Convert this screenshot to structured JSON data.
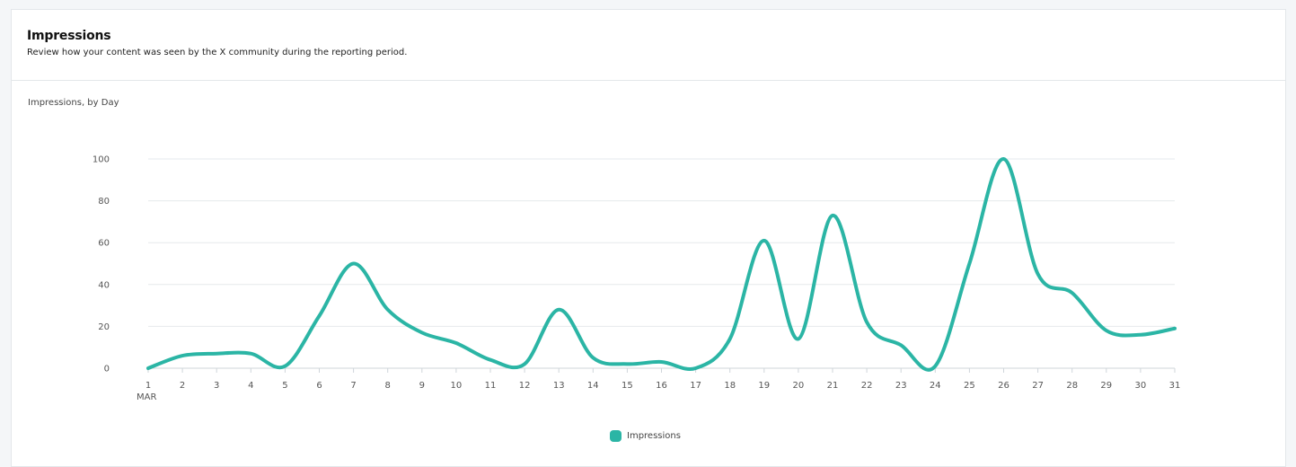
{
  "header": {
    "title": "Impressions",
    "subtitle": "Review how your content was seen by the X community during the reporting period."
  },
  "colors": {
    "series": "#2bb5a5",
    "grid": "#e6e9ec",
    "axis": "#cfd5da"
  },
  "chart_data": {
    "type": "line",
    "title": "Impressions, by Day",
    "xlabel": "",
    "ylabel": "",
    "x": [
      "1",
      "2",
      "3",
      "4",
      "5",
      "6",
      "7",
      "8",
      "9",
      "10",
      "11",
      "12",
      "13",
      "14",
      "15",
      "16",
      "17",
      "18",
      "19",
      "20",
      "21",
      "22",
      "23",
      "24",
      "25",
      "26",
      "27",
      "28",
      "29",
      "30",
      "31"
    ],
    "x_sublabel": "MAR",
    "yticks": [
      0,
      20,
      40,
      60,
      80,
      100
    ],
    "ylim": [
      0,
      100
    ],
    "grid": true,
    "legend_position": "bottom-center",
    "series": [
      {
        "name": "Impressions",
        "values": [
          0,
          6,
          7,
          7,
          1,
          25,
          50,
          28,
          17,
          12,
          4,
          2,
          28,
          5,
          2,
          3,
          0,
          14,
          61,
          14,
          73,
          22,
          11,
          1,
          50,
          100,
          45,
          36,
          18,
          16,
          19
        ]
      }
    ]
  }
}
